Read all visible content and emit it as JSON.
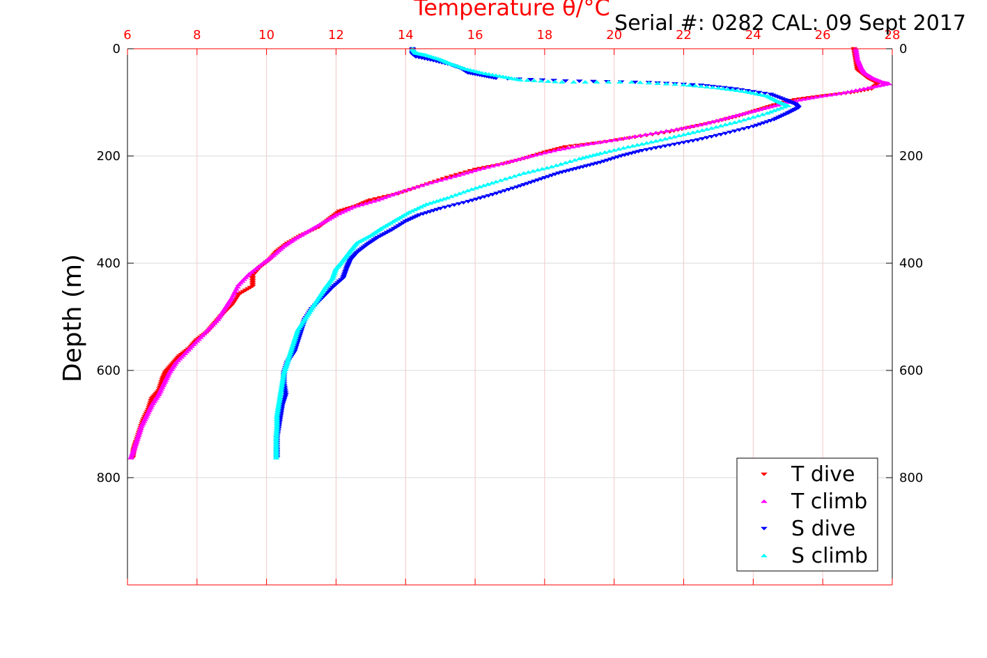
{
  "chart_data": {
    "type": "scatter",
    "title": "Temperature θ/°C",
    "subtitle": "Serial #: 0282  CAL: 09 Sept 2017",
    "xlabel": "Temperature θ/°C",
    "ylabel": "Depth (m)",
    "xlim": [
      6,
      28
    ],
    "ylim": [
      0,
      1000
    ],
    "y_reversed": true,
    "x_ticks": [
      "6",
      "8",
      "10",
      "12",
      "14",
      "16",
      "18",
      "20",
      "22",
      "24",
      "26",
      "28"
    ],
    "y_ticks": [
      "0",
      "200",
      "400",
      "600",
      "800"
    ],
    "grid": true,
    "legend_position": "bottom-right",
    "colors": {
      "axis_top": "#ff0000",
      "grid_x": "#f4c8c8",
      "grid_y": "#d8d8d8"
    },
    "series": [
      {
        "name": "T dive",
        "marker": "triangle-down",
        "color": "#ff0000",
        "points": [
          [
            26.9,
            0
          ],
          [
            26.95,
            20
          ],
          [
            27.0,
            40
          ],
          [
            27.3,
            55
          ],
          [
            27.6,
            65
          ],
          [
            27.4,
            75
          ],
          [
            26.8,
            82
          ],
          [
            26.0,
            88
          ],
          [
            25.2,
            95
          ],
          [
            24.6,
            105
          ],
          [
            24.1,
            115
          ],
          [
            23.6,
            125
          ],
          [
            23.0,
            135
          ],
          [
            22.3,
            145
          ],
          [
            21.6,
            155
          ],
          [
            20.6,
            165
          ],
          [
            19.6,
            175
          ],
          [
            18.6,
            183
          ],
          [
            18.0,
            193
          ],
          [
            17.4,
            205
          ],
          [
            16.8,
            215
          ],
          [
            16.0,
            225
          ],
          [
            15.2,
            240
          ],
          [
            14.5,
            255
          ],
          [
            13.8,
            270
          ],
          [
            13.0,
            282
          ],
          [
            12.6,
            293
          ],
          [
            12.1,
            303
          ],
          [
            11.8,
            318
          ],
          [
            11.5,
            333
          ],
          [
            11.0,
            348
          ],
          [
            10.6,
            363
          ],
          [
            10.3,
            378
          ],
          [
            10.1,
            393
          ],
          [
            9.8,
            408
          ],
          [
            9.6,
            423
          ],
          [
            9.6,
            443
          ],
          [
            9.2,
            458
          ],
          [
            9.0,
            478
          ],
          [
            8.7,
            498
          ],
          [
            8.5,
            513
          ],
          [
            8.3,
            528
          ],
          [
            8.0,
            543
          ],
          [
            7.8,
            558
          ],
          [
            7.5,
            573
          ],
          [
            7.3,
            588
          ],
          [
            7.1,
            603
          ],
          [
            7.0,
            618
          ],
          [
            6.9,
            638
          ],
          [
            6.7,
            653
          ],
          [
            6.6,
            673
          ],
          [
            6.45,
            693
          ],
          [
            6.35,
            713
          ],
          [
            6.25,
            733
          ],
          [
            6.18,
            748
          ],
          [
            6.15,
            763
          ]
        ]
      },
      {
        "name": "T climb",
        "marker": "triangle-up",
        "color": "#ff00ff",
        "points": [
          [
            26.95,
            0
          ],
          [
            27.0,
            20
          ],
          [
            27.1,
            35
          ],
          [
            27.2,
            45
          ],
          [
            27.45,
            55
          ],
          [
            27.75,
            63
          ],
          [
            27.9,
            65
          ],
          [
            27.3,
            73
          ],
          [
            26.6,
            82
          ],
          [
            25.8,
            90
          ],
          [
            25.1,
            98
          ],
          [
            24.5,
            108
          ],
          [
            23.9,
            118
          ],
          [
            23.3,
            128
          ],
          [
            22.6,
            140
          ],
          [
            21.8,
            150
          ],
          [
            20.9,
            160
          ],
          [
            20.0,
            170
          ],
          [
            19.2,
            178
          ],
          [
            18.4,
            188
          ],
          [
            17.6,
            200
          ],
          [
            16.9,
            212
          ],
          [
            16.1,
            225
          ],
          [
            15.4,
            238
          ],
          [
            14.6,
            252
          ],
          [
            13.8,
            268
          ],
          [
            13.2,
            282
          ],
          [
            12.5,
            295
          ],
          [
            12.0,
            310
          ],
          [
            11.6,
            325
          ],
          [
            11.2,
            340
          ],
          [
            10.8,
            355
          ],
          [
            10.5,
            368
          ],
          [
            10.2,
            385
          ],
          [
            9.9,
            400
          ],
          [
            9.5,
            420
          ],
          [
            9.2,
            440
          ],
          [
            9.0,
            465
          ],
          [
            8.8,
            485
          ],
          [
            8.6,
            505
          ],
          [
            8.3,
            525
          ],
          [
            8.0,
            545
          ],
          [
            7.7,
            565
          ],
          [
            7.4,
            585
          ],
          [
            7.2,
            605
          ],
          [
            7.05,
            625
          ],
          [
            6.9,
            645
          ],
          [
            6.7,
            665
          ],
          [
            6.55,
            685
          ],
          [
            6.4,
            705
          ],
          [
            6.3,
            725
          ],
          [
            6.2,
            745
          ],
          [
            6.1,
            763
          ]
        ]
      },
      {
        "name": "S dive",
        "marker": "triangle-down",
        "color": "#0000ff",
        "points": [
          [
            14.2,
            0
          ],
          [
            14.2,
            10
          ],
          [
            14.3,
            15
          ],
          [
            14.8,
            22
          ],
          [
            15.3,
            30
          ],
          [
            15.6,
            37
          ],
          [
            15.8,
            45
          ],
          [
            16.2,
            50
          ],
          [
            16.6,
            55
          ],
          [
            18.6,
            60
          ],
          [
            21.0,
            63
          ],
          [
            22.5,
            68
          ],
          [
            23.5,
            75
          ],
          [
            24.5,
            85
          ],
          [
            24.9,
            95
          ],
          [
            25.2,
            103
          ],
          [
            25.3,
            110
          ],
          [
            25.0,
            120
          ],
          [
            24.6,
            132
          ],
          [
            24.0,
            145
          ],
          [
            23.2,
            158
          ],
          [
            22.4,
            170
          ],
          [
            21.6,
            180
          ],
          [
            20.8,
            190
          ],
          [
            20.2,
            200
          ],
          [
            19.6,
            212
          ],
          [
            19.0,
            222
          ],
          [
            18.4,
            232
          ],
          [
            17.8,
            245
          ],
          [
            17.2,
            258
          ],
          [
            16.5,
            272
          ],
          [
            15.8,
            285
          ],
          [
            15.0,
            298
          ],
          [
            14.4,
            310
          ],
          [
            14.0,
            322
          ],
          [
            13.6,
            338
          ],
          [
            13.2,
            352
          ],
          [
            12.9,
            365
          ],
          [
            12.6,
            380
          ],
          [
            12.4,
            395
          ],
          [
            12.3,
            410
          ],
          [
            12.2,
            428
          ],
          [
            11.9,
            445
          ],
          [
            11.6,
            465
          ],
          [
            11.3,
            485
          ],
          [
            11.1,
            505
          ],
          [
            11.0,
            525
          ],
          [
            10.9,
            545
          ],
          [
            10.8,
            565
          ],
          [
            10.6,
            585
          ],
          [
            10.5,
            605
          ],
          [
            10.5,
            625
          ],
          [
            10.55,
            645
          ],
          [
            10.45,
            665
          ],
          [
            10.4,
            685
          ],
          [
            10.35,
            705
          ],
          [
            10.3,
            725
          ],
          [
            10.3,
            745
          ],
          [
            10.3,
            763
          ]
        ]
      },
      {
        "name": "S climb",
        "marker": "triangle-up",
        "color": "#00ffff",
        "points": [
          [
            14.2,
            0
          ],
          [
            14.3,
            8
          ],
          [
            14.6,
            12
          ],
          [
            15.0,
            20
          ],
          [
            15.3,
            28
          ],
          [
            15.7,
            37
          ],
          [
            16.2,
            45
          ],
          [
            16.8,
            52
          ],
          [
            17.3,
            58
          ],
          [
            18.5,
            62
          ],
          [
            20.5,
            62
          ],
          [
            22.0,
            67
          ],
          [
            23.0,
            73
          ],
          [
            23.8,
            80
          ],
          [
            24.4,
            88
          ],
          [
            24.7,
            98
          ],
          [
            25.0,
            106
          ],
          [
            24.4,
            120
          ],
          [
            23.6,
            135
          ],
          [
            22.8,
            148
          ],
          [
            22.0,
            160
          ],
          [
            21.2,
            172
          ],
          [
            20.4,
            183
          ],
          [
            19.6,
            195
          ],
          [
            19.0,
            205
          ],
          [
            18.2,
            220
          ],
          [
            17.4,
            232
          ],
          [
            16.6,
            248
          ],
          [
            15.9,
            262
          ],
          [
            15.2,
            278
          ],
          [
            14.6,
            290
          ],
          [
            14.1,
            305
          ],
          [
            13.7,
            320
          ],
          [
            13.3,
            335
          ],
          [
            13.0,
            348
          ],
          [
            12.6,
            362
          ],
          [
            12.4,
            378
          ],
          [
            12.2,
            395
          ],
          [
            12.0,
            410
          ],
          [
            11.9,
            428
          ],
          [
            11.7,
            445
          ],
          [
            11.5,
            465
          ],
          [
            11.3,
            485
          ],
          [
            11.1,
            505
          ],
          [
            10.9,
            525
          ],
          [
            10.8,
            545
          ],
          [
            10.7,
            565
          ],
          [
            10.6,
            585
          ],
          [
            10.5,
            605
          ],
          [
            10.45,
            625
          ],
          [
            10.4,
            645
          ],
          [
            10.35,
            665
          ],
          [
            10.3,
            685
          ],
          [
            10.3,
            705
          ],
          [
            10.28,
            725
          ],
          [
            10.28,
            745
          ],
          [
            10.28,
            763
          ]
        ]
      }
    ]
  }
}
